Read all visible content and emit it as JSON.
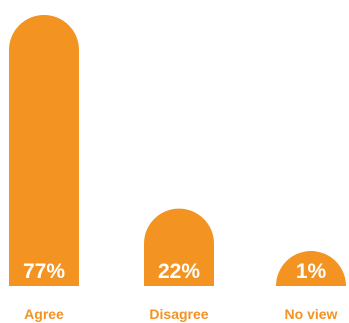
{
  "chart_data": {
    "type": "bar",
    "categories": [
      "Agree",
      "Disagree",
      "No view"
    ],
    "values": [
      77,
      22,
      1
    ],
    "value_labels": [
      "77%",
      "22%",
      "1%"
    ],
    "ylim": [
      0,
      77
    ],
    "grid": false,
    "legend": "none",
    "colors": {
      "bar": "#f39322",
      "category_label": "#f39322",
      "value_label": "#ffffff"
    }
  }
}
